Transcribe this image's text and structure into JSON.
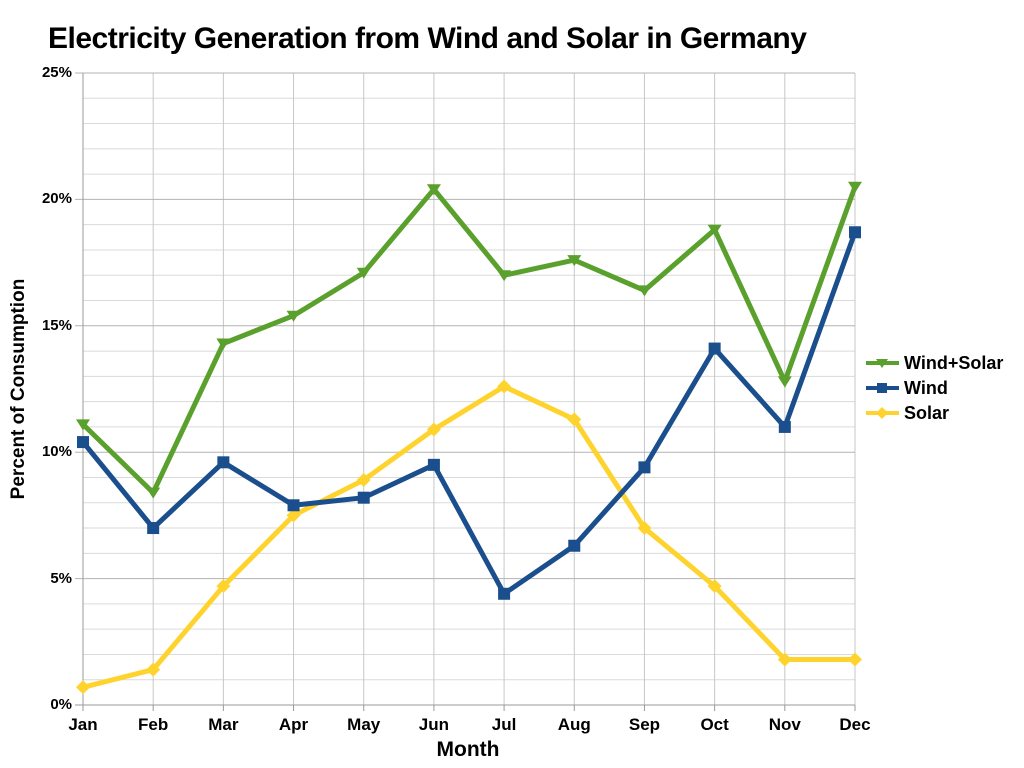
{
  "chart_data": {
    "type": "line",
    "title": "Electricity Generation from Wind and Solar in Germany",
    "xlabel": "Month",
    "ylabel": "Percent of Consumption",
    "x": [
      "Jan",
      "Feb",
      "Mar",
      "Apr",
      "May",
      "Jun",
      "Jul",
      "Aug",
      "Sep",
      "Oct",
      "Nov",
      "Dec"
    ],
    "ylim": [
      0,
      25
    ],
    "y_major_step": 5,
    "y_minor_step": 1,
    "y_tick_labels": [
      "0%",
      "5%",
      "10%",
      "15%",
      "20%",
      "25%"
    ],
    "grid": "horizontal minor every 1%, major every 5%, vertical line at each month",
    "legend_position": "right",
    "series": [
      {
        "name": "Wind+Solar",
        "color": "#5aa02c",
        "marker": "triangle-down",
        "values": [
          11.1,
          8.4,
          14.3,
          15.4,
          17.1,
          20.4,
          17.0,
          17.6,
          16.4,
          18.8,
          12.8,
          20.5
        ]
      },
      {
        "name": "Wind",
        "color": "#1a4e8c",
        "marker": "square",
        "values": [
          10.4,
          7.0,
          9.6,
          7.9,
          8.2,
          9.5,
          4.4,
          6.3,
          9.4,
          14.1,
          11.0,
          18.7
        ]
      },
      {
        "name": "Solar",
        "color": "#ffd32e",
        "marker": "diamond",
        "values": [
          0.7,
          1.4,
          4.7,
          7.5,
          8.9,
          10.9,
          12.6,
          11.3,
          7.0,
          4.7,
          1.8,
          1.8
        ]
      }
    ],
    "colors": {
      "background": "#ffffff",
      "grid_minor": "#dadada",
      "grid_major": "#b3b3b3",
      "grid_vertical": "#c7c7c7",
      "axis": "#9a9a9a",
      "text": "#000000"
    }
  }
}
